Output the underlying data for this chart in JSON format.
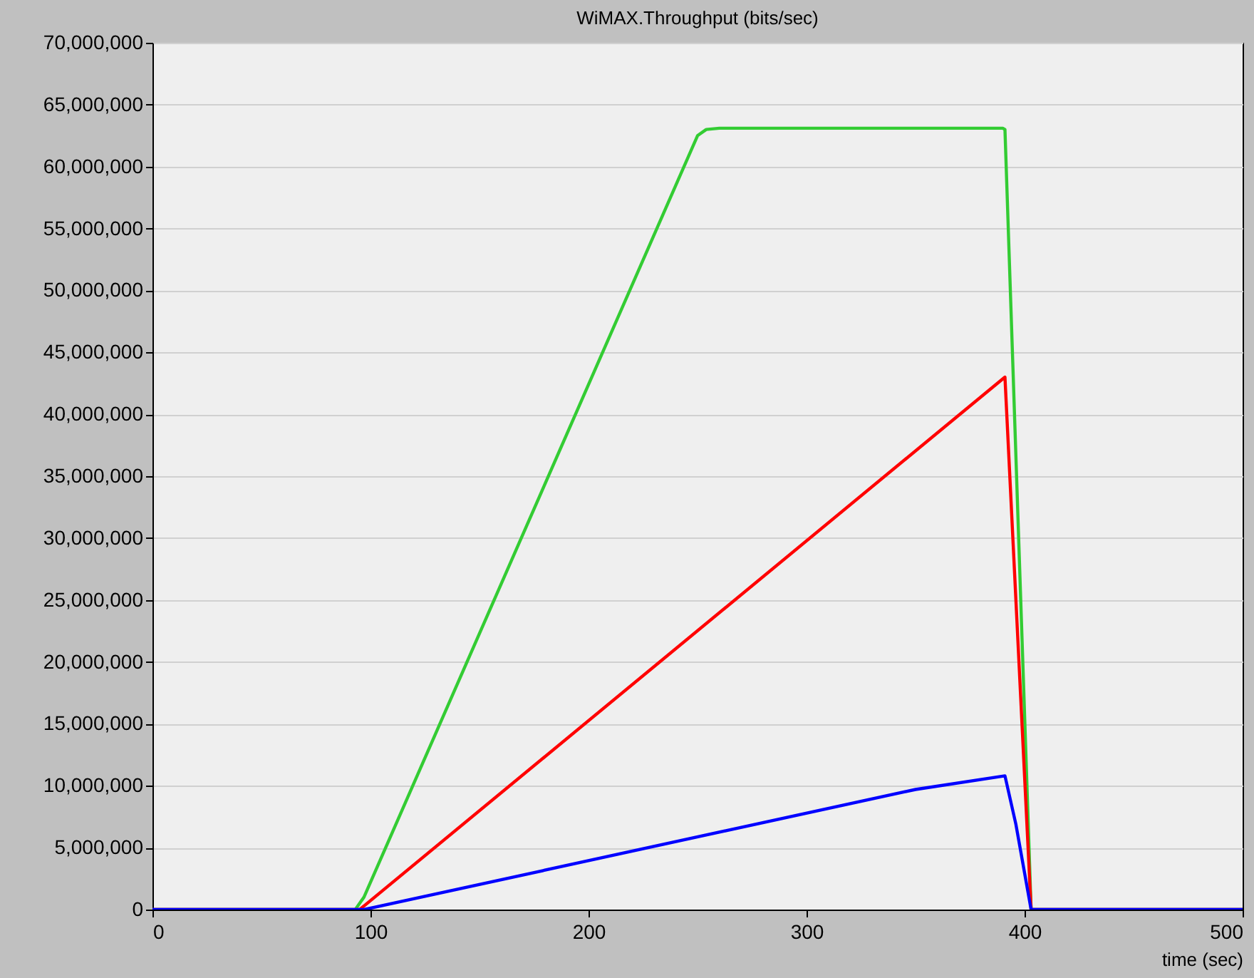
{
  "chart_data": {
    "type": "line",
    "title": "WiMAX.Throughput (bits/sec)",
    "xlabel": "time (sec)",
    "xlim": [
      0,
      500
    ],
    "xticks": [
      0,
      100,
      200,
      300,
      400,
      500
    ],
    "ylim": [
      0,
      70000000
    ],
    "yticks": [
      0,
      {
        "value": 5000000,
        "label": "5,000,000"
      },
      {
        "value": 10000000,
        "label": "10,000,000"
      },
      {
        "value": 15000000,
        "label": "15,000,000"
      },
      {
        "value": 20000000,
        "label": "20,000,000"
      },
      {
        "value": 25000000,
        "label": "25,000,000"
      },
      {
        "value": 30000000,
        "label": "30,000,000"
      },
      {
        "value": 35000000,
        "label": "35,000,000"
      },
      {
        "value": 40000000,
        "label": "40,000,000"
      },
      {
        "value": 45000000,
        "label": "45,000,000"
      },
      {
        "value": 50000000,
        "label": "50,000,000"
      },
      {
        "value": 55000000,
        "label": "55,000,000"
      },
      {
        "value": 60000000,
        "label": "60,000,000"
      },
      {
        "value": 65000000,
        "label": "65,000,000"
      },
      {
        "value": 70000000,
        "label": "70,000,000"
      }
    ],
    "grid": "y",
    "marker": "none",
    "line_style": "solid",
    "series": [
      {
        "color": "#33cc33",
        "x": [
          0,
          93,
          97,
          250,
          254,
          260,
          390,
          391,
          403,
          500
        ],
        "values": [
          0,
          0,
          1000000,
          62500000,
          63000000,
          63100000,
          63100000,
          63000000,
          0,
          0
        ]
      },
      {
        "color": "#ff0000",
        "x": [
          0,
          95,
          391,
          403,
          500
        ],
        "values": [
          0,
          0,
          43000000,
          0,
          0
        ]
      },
      {
        "color": "#0000ff",
        "x": [
          0,
          97,
          350,
          391,
          396,
          403,
          500
        ],
        "values": [
          0,
          0,
          9700000,
          10800000,
          6900000,
          0,
          0
        ]
      }
    ]
  }
}
